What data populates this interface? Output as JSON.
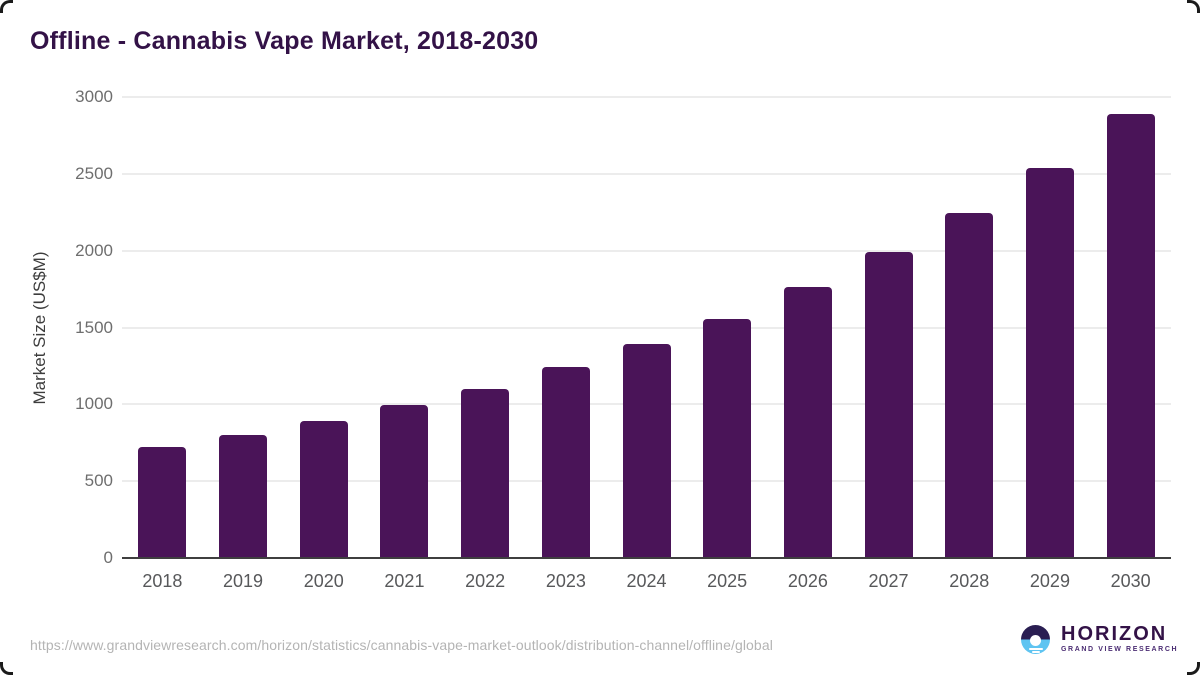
{
  "title": "Offline - Cannabis Vape Market, 2018-2030",
  "chart_data": {
    "type": "bar",
    "title": "Offline - Cannabis Vape Market, 2018-2030",
    "categories": [
      "2018",
      "2019",
      "2020",
      "2021",
      "2022",
      "2023",
      "2024",
      "2025",
      "2026",
      "2027",
      "2028",
      "2029",
      "2030"
    ],
    "values": [
      720,
      800,
      890,
      995,
      1103,
      1245,
      1391,
      1558,
      1761,
      1990,
      2246,
      2541,
      2889
    ],
    "xlabel": "",
    "ylabel": "Market Size (US$M)",
    "ylim": [
      0,
      3000
    ],
    "yticks": [
      0,
      500,
      1000,
      1500,
      2000,
      2500,
      3000
    ],
    "grid": "horizontal",
    "legend": "none",
    "colors": {
      "bar": "#4a1458",
      "title": "#331247",
      "grid": "#ececec",
      "axis": "#3f3f3f",
      "y_tick_label": "#6e6e6e",
      "x_tick_label": "#57585a"
    }
  },
  "footer": {
    "source_url": "https://www.grandviewresearch.com/horizon/statistics/cannabis-vape-market-outlook/distribution-channel/offline/global",
    "logo": {
      "name": "HORIZON",
      "subtitle": "GRAND VIEW RESEARCH",
      "mark": "sunrise-horizon-icon",
      "mark_top_color": "#2a1e52",
      "mark_bottom_color": "#5fc4f1"
    }
  }
}
